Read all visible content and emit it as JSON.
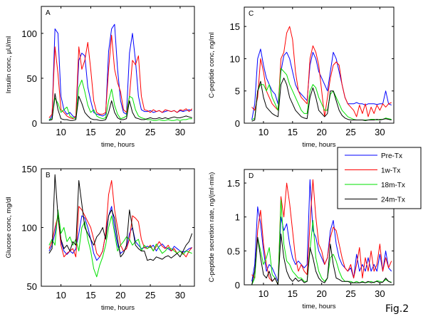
{
  "figure_label": "Fig.2",
  "legend": {
    "placement": "right, between panels C and D",
    "entries": [
      {
        "label": "Pre-Tx",
        "color": "#0000ff"
      },
      {
        "label": "1w-Tx",
        "color": "#ff0000"
      },
      {
        "label": "18m-Tx",
        "color": "#00e000"
      },
      {
        "label": "24m-Tx",
        "color": "#000000"
      }
    ]
  },
  "chart_data": [
    {
      "type": "line",
      "panel": "A",
      "title": "",
      "xlabel": "time, hours",
      "ylabel": "Insulin conc, µU/ml",
      "xlim": [
        6.7,
        32.4
      ],
      "ylim": [
        0,
        130
      ],
      "xticks": [
        10,
        15,
        20,
        25,
        30
      ],
      "yticks": [
        0,
        50,
        100
      ],
      "x": [
        8,
        8.5,
        9,
        9.5,
        10,
        10.5,
        11,
        11.5,
        12,
        12.5,
        13,
        13.5,
        14,
        14.5,
        15,
        15.5,
        16,
        16.5,
        17,
        17.5,
        18,
        18.5,
        19,
        19.5,
        20,
        20.5,
        21,
        21.5,
        22,
        22.5,
        23,
        23.5,
        24,
        24.5,
        25,
        25.5,
        26,
        26.5,
        27,
        27.5,
        28,
        28.5,
        29,
        29.5,
        30,
        30.5,
        31,
        31.5,
        32
      ],
      "series": [
        {
          "name": "Pre-Tx",
          "values": [
            3,
            8,
            105,
            100,
            30,
            15,
            10,
            12,
            8,
            6,
            70,
            78,
            75,
            40,
            25,
            12,
            10,
            9,
            8,
            10,
            80,
            105,
            110,
            60,
            25,
            12,
            10,
            78,
            100,
            70,
            30,
            15,
            13,
            13,
            14,
            12,
            13,
            14,
            12,
            13,
            14,
            13,
            14,
            12,
            14,
            13,
            14,
            15,
            14
          ]
        },
        {
          "name": "1w-Tx",
          "values": [
            6,
            10,
            85,
            55,
            15,
            12,
            8,
            6,
            5,
            8,
            85,
            60,
            70,
            90,
            60,
            25,
            12,
            10,
            10,
            12,
            60,
            98,
            60,
            45,
            35,
            15,
            12,
            30,
            70,
            65,
            75,
            30,
            15,
            14,
            12,
            15,
            13,
            14,
            12,
            15,
            14,
            13,
            14,
            12,
            15,
            14,
            16,
            13,
            16
          ]
        },
        {
          "name": "18m-Tx",
          "values": [
            4,
            5,
            28,
            22,
            12,
            15,
            18,
            8,
            6,
            5,
            40,
            48,
            35,
            20,
            12,
            15,
            8,
            6,
            5,
            6,
            25,
            38,
            20,
            10,
            5,
            6,
            8,
            30,
            28,
            15,
            8,
            6,
            5,
            4,
            4,
            3,
            3,
            4,
            3,
            3,
            4,
            3,
            3,
            4,
            3,
            4,
            4,
            5,
            5
          ]
        },
        {
          "name": "24m-Tx",
          "values": [
            3,
            4,
            33,
            15,
            5,
            4,
            4,
            3,
            3,
            4,
            30,
            22,
            12,
            8,
            5,
            4,
            4,
            3,
            3,
            4,
            12,
            25,
            12,
            6,
            4,
            4,
            5,
            25,
            12,
            6,
            5,
            4,
            4,
            5,
            6,
            5,
            5,
            6,
            5,
            6,
            5,
            6,
            7,
            6,
            6,
            7,
            8,
            7,
            6
          ]
        }
      ]
    },
    {
      "type": "line",
      "panel": "B",
      "title": "",
      "xlabel": "time, hours",
      "ylabel": "Glucose conc, mg/dl",
      "xlim": [
        6.7,
        32.4
      ],
      "ylim": [
        50,
        150
      ],
      "xticks": [
        10,
        15,
        20,
        25,
        30
      ],
      "yticks": [
        50,
        100,
        150
      ],
      "x": [
        8,
        8.5,
        9,
        9.5,
        10,
        10.5,
        11,
        11.5,
        12,
        12.5,
        13,
        13.5,
        14,
        14.5,
        15,
        15.5,
        16,
        16.5,
        17,
        17.5,
        18,
        18.5,
        19,
        19.5,
        20,
        20.5,
        21,
        21.5,
        22,
        22.5,
        23,
        23.5,
        24,
        24.5,
        25,
        25.5,
        26,
        26.5,
        27,
        27.5,
        28,
        28.5,
        29,
        29.5,
        30,
        30.5,
        31,
        31.5,
        32
      ],
      "series": [
        {
          "name": "Pre-Tx",
          "values": [
            80,
            85,
            95,
            110,
            88,
            80,
            77,
            80,
            78,
            82,
            95,
            110,
            108,
            100,
            90,
            78,
            72,
            75,
            80,
            95,
            110,
            118,
            100,
            85,
            78,
            80,
            82,
            95,
            100,
            88,
            85,
            82,
            83,
            84,
            83,
            85,
            80,
            84,
            86,
            83,
            82,
            80,
            84,
            82,
            80,
            79,
            80,
            82,
            83
          ]
        },
        {
          "name": "1w-Tx",
          "values": [
            82,
            88,
            100,
            110,
            85,
            75,
            78,
            80,
            82,
            75,
            118,
            115,
            110,
            105,
            100,
            90,
            78,
            75,
            80,
            95,
            128,
            140,
            115,
            100,
            85,
            80,
            82,
            90,
            110,
            108,
            105,
            90,
            83,
            82,
            85,
            80,
            84,
            88,
            84,
            82,
            85,
            80,
            82,
            78,
            80,
            78,
            75,
            80,
            83
          ]
        },
        {
          "name": "18m-Tx",
          "values": [
            85,
            90,
            85,
            115,
            95,
            100,
            88,
            92,
            85,
            90,
            80,
            100,
            105,
            90,
            80,
            65,
            58,
            68,
            75,
            85,
            100,
            110,
            95,
            80,
            85,
            88,
            92,
            90,
            85,
            88,
            90,
            80,
            85,
            82,
            84,
            80,
            86,
            82,
            78,
            80,
            83,
            82,
            80,
            78,
            80,
            77,
            80,
            79,
            78
          ]
        },
        {
          "name": "24m-Tx",
          "values": [
            78,
            82,
            145,
            110,
            90,
            82,
            85,
            80,
            88,
            85,
            140,
            120,
            100,
            95,
            90,
            85,
            92,
            95,
            100,
            90,
            110,
            115,
            108,
            90,
            75,
            78,
            85,
            115,
            100,
            85,
            82,
            80,
            80,
            72,
            73,
            72,
            75,
            74,
            73,
            75,
            76,
            74,
            76,
            78,
            75,
            80,
            85,
            88,
            95
          ]
        }
      ]
    },
    {
      "type": "line",
      "panel": "C",
      "title": "",
      "xlabel": "time, hours",
      "ylabel": "C-peptide conc, ng/ml",
      "xlim": [
        6.7,
        32.4
      ],
      "ylim": [
        0,
        18
      ],
      "xticks": [
        10,
        15,
        20,
        25,
        30
      ],
      "yticks": [
        0,
        5,
        10,
        15
      ],
      "x": [
        8,
        8.5,
        9,
        9.5,
        10,
        10.5,
        11,
        11.5,
        12,
        12.5,
        13,
        13.5,
        14,
        14.5,
        15,
        15.5,
        16,
        16.5,
        17,
        17.5,
        18,
        18.5,
        19,
        19.5,
        20,
        20.5,
        21,
        21.5,
        22,
        22.5,
        23,
        23.5,
        24,
        24.5,
        25,
        25.5,
        26,
        26.5,
        27,
        27.5,
        28,
        28.5,
        29,
        29.5,
        30,
        30.5,
        31,
        31.5,
        32
      ],
      "series": [
        {
          "name": "Pre-Tx",
          "values": [
            0.5,
            3,
            10,
            11.5,
            9,
            7,
            6,
            5,
            4.5,
            3,
            8,
            10.5,
            11,
            10,
            8,
            6,
            5,
            4.5,
            4,
            3.5,
            9,
            11,
            10,
            8,
            7,
            6,
            5,
            8,
            11,
            10,
            8,
            6,
            4,
            3,
            3,
            3,
            3.2,
            3,
            3,
            2.8,
            3,
            3,
            3,
            2.9,
            3,
            3,
            5,
            3,
            2.8
          ]
        },
        {
          "name": "1w-Tx",
          "values": [
            2.5,
            2,
            4,
            10,
            8,
            5,
            4,
            3,
            2.5,
            2,
            10,
            11,
            14,
            15,
            13,
            8,
            5,
            4,
            3.5,
            3,
            10,
            12,
            11,
            9,
            5,
            1,
            4,
            7,
            9,
            9.5,
            9,
            6,
            4,
            3,
            2.5,
            2,
            1,
            2.8,
            1.5,
            3,
            1,
            2.5,
            1.5,
            2.8,
            2,
            3,
            2.5,
            3,
            3.2
          ]
        },
        {
          "name": "18m-Tx",
          "values": [
            0.5,
            0.8,
            5,
            6,
            6,
            5,
            6,
            4,
            3,
            2,
            8.5,
            8,
            7.5,
            6,
            5,
            4,
            3,
            2,
            1.5,
            1.5,
            5,
            6,
            5.5,
            4,
            3,
            2,
            2,
            4.5,
            5,
            4,
            3,
            2,
            1.5,
            1,
            0.8,
            0.6,
            0.5,
            0.5,
            0.5,
            0.5,
            0.5,
            0.6,
            0.6,
            0.5,
            0.6,
            0.6,
            0.8,
            0.7,
            0.6
          ]
        },
        {
          "name": "24m-Tx",
          "values": [
            0.3,
            0.5,
            5,
            6.5,
            4,
            2.5,
            2,
            1.5,
            1.2,
            1,
            6,
            7,
            6,
            4,
            3,
            2,
            1.5,
            1,
            0.8,
            0.7,
            4,
            5.5,
            4,
            2,
            1.5,
            1,
            1.5,
            5,
            5,
            3.5,
            2,
            1.2,
            0.8,
            0.6,
            0.5,
            0.5,
            0.5,
            0.5,
            0.5,
            0.4,
            0.5,
            0.5,
            0.5,
            0.6,
            0.5,
            0.6,
            0.7,
            0.6,
            0.5
          ]
        }
      ]
    },
    {
      "type": "line",
      "panel": "D",
      "title": "",
      "xlabel": "time, hours",
      "ylabel": "C-peptide secretion rate, ng/(ml·min)",
      "xlim": [
        6.7,
        32.4
      ],
      "ylim": [
        0,
        1.7
      ],
      "xticks": [
        10,
        15,
        20,
        25,
        30
      ],
      "yticks": [
        0,
        0.5,
        1,
        1.5
      ],
      "ytick_labels": [
        "0",
        "0.5",
        "1",
        "1.5"
      ],
      "x": [
        8,
        8.5,
        9,
        9.5,
        10,
        10.5,
        11,
        11.5,
        12,
        12.5,
        13,
        13.5,
        14,
        14.5,
        15,
        15.5,
        16,
        16.5,
        17,
        17.5,
        18,
        18.5,
        19,
        19.5,
        20,
        20.5,
        21,
        21.5,
        22,
        22.5,
        23,
        23.5,
        24,
        24.5,
        25,
        25.5,
        26,
        26.5,
        27,
        27.5,
        28,
        28.5,
        29,
        29.5,
        30,
        30.5,
        31,
        31.5,
        32
      ],
      "series": [
        {
          "name": "Pre-Tx",
          "values": [
            0.05,
            0.3,
            1.15,
            0.9,
            0.5,
            0.2,
            0.3,
            0.25,
            0.15,
            0.05,
            1.0,
            0.8,
            0.9,
            0.6,
            0.4,
            0.3,
            0.35,
            0.3,
            0.25,
            0.3,
            1.55,
            0.8,
            0.7,
            0.5,
            0.4,
            0.3,
            0.4,
            0.8,
            0.95,
            0.6,
            0.4,
            0.3,
            0.25,
            0.2,
            0.25,
            0.1,
            0.45,
            0.2,
            0.3,
            0.2,
            0.4,
            0.2,
            0.3,
            0.2,
            0.45,
            0.2,
            0.5,
            0.25,
            0.2
          ]
        },
        {
          "name": "1w-Tx",
          "values": [
            0.15,
            0.1,
            0.8,
            1.1,
            0.6,
            0.3,
            0.1,
            0.05,
            0.1,
            0.0,
            1.3,
            1.0,
            1.5,
            1.2,
            0.8,
            0.4,
            0.2,
            0.3,
            0.2,
            0.15,
            0.9,
            1.55,
            1.0,
            0.6,
            0.5,
            0.3,
            0.4,
            0.7,
            0.85,
            0.8,
            0.6,
            0.4,
            0.25,
            0.2,
            0.3,
            0.1,
            0.3,
            0.55,
            0.1,
            0.4,
            0.2,
            0.5,
            0.2,
            0.3,
            0.6,
            0.2,
            0.4,
            0.25,
            0.35
          ]
        },
        {
          "name": "18m-Tx",
          "values": [
            0.0,
            0.1,
            0.7,
            0.5,
            0.3,
            0.4,
            0.55,
            0.15,
            0.1,
            0.0,
            1.25,
            0.6,
            0.35,
            0.3,
            0.2,
            0.15,
            0.1,
            0.1,
            0.05,
            0.05,
            0.5,
            0.95,
            0.4,
            0.2,
            0.1,
            0.05,
            0.1,
            0.4,
            0.45,
            0.35,
            0.2,
            0.1,
            0.05,
            0.05,
            0.05,
            0.03,
            0.05,
            0.03,
            0.05,
            0.03,
            0.04,
            0.05,
            0.03,
            0.06,
            0.05,
            0.04,
            0.08,
            0.05,
            0.04
          ]
        },
        {
          "name": "24m-Tx",
          "values": [
            0.0,
            0.2,
            0.7,
            0.4,
            0.15,
            0.1,
            0.2,
            0.05,
            0.1,
            0.0,
            0.75,
            0.4,
            0.2,
            0.1,
            0.05,
            0.1,
            0.05,
            0.08,
            0.03,
            0.05,
            0.55,
            0.4,
            0.2,
            0.1,
            0.05,
            0.03,
            0.1,
            0.6,
            0.3,
            0.1,
            0.08,
            0.05,
            0.05,
            0.05,
            0.03,
            0.03,
            0.03,
            0.03,
            0.04,
            0.03,
            0.05,
            0.03,
            0.04,
            0.05,
            0.03,
            0.04,
            0.1,
            0.05,
            0.03
          ]
        }
      ]
    }
  ]
}
